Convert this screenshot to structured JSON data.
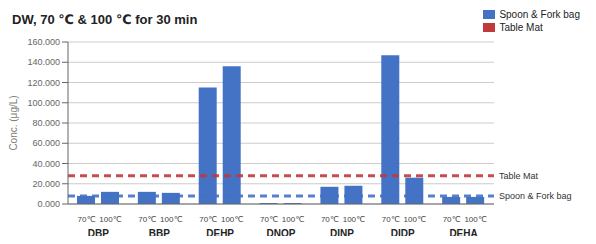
{
  "chart_data": {
    "type": "bar",
    "title": "DW, 70 ℃ & 100 ℃ for 30 min",
    "ylabel": "Conc. (μg/L)",
    "categories": [
      "DBP",
      "BBP",
      "DEHP",
      "DNOP",
      "DINP",
      "DIDP",
      "DEHA"
    ],
    "series": [
      {
        "name": "70℃",
        "color": "#4472C4",
        "values": [
          8000,
          12000,
          115000,
          1000,
          17000,
          147000,
          7000
        ]
      },
      {
        "name": "100℃",
        "color": "#4472C4",
        "values": [
          12000,
          11000,
          136000,
          1000,
          18000,
          26000,
          7000
        ]
      }
    ],
    "reference_lines": [
      {
        "label": "Table Mat",
        "value": 28000,
        "color": "#C0393B",
        "line_style": "dashed"
      },
      {
        "label": "Spoon & Fork bag",
        "value": 8000,
        "color": "#4472C4",
        "line_style": "dashed"
      }
    ],
    "legend_items": [
      {
        "name": "Spoon & Fork bag",
        "color": "#4472C4"
      },
      {
        "name": "Table Mat",
        "color": "#C0393B"
      }
    ],
    "legend": "upper right",
    "ylim": [
      0,
      160000
    ],
    "yticks": [
      {
        "value": 0,
        "label": "0.000"
      },
      {
        "value": 20000,
        "label": "20.000"
      },
      {
        "value": 40000,
        "label": "40.000"
      },
      {
        "value": 60000,
        "label": "60.000"
      },
      {
        "value": 80000,
        "label": "80.000"
      },
      {
        "value": 100000,
        "label": "100.000"
      },
      {
        "value": 120000,
        "label": "120.000"
      },
      {
        "value": 140000,
        "label": "140.000"
      },
      {
        "value": 160000,
        "label": "160.000"
      }
    ],
    "grid": true
  }
}
